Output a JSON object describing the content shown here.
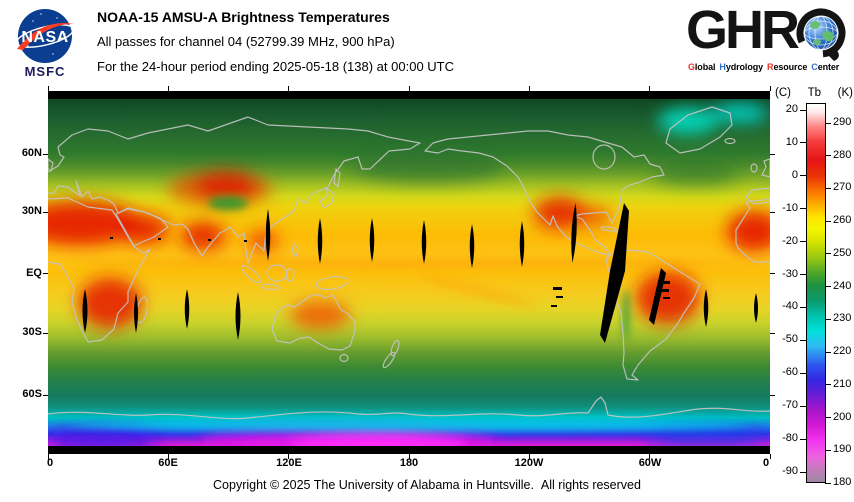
{
  "header": {
    "nasa": {
      "logo_text": "NASA",
      "center_label": "MSFC"
    },
    "title_lines": [
      "NOAA-15 AMSU-A Brightness Temperatures",
      "All passes for channel 04 (52799.39 MHz, 900 hPa)",
      "For the 24-hour period ending 2025-05-18 (138) at 00:00 UTC"
    ],
    "ghrc": {
      "wordmark": "GHR",
      "tagline": [
        {
          "first": "G",
          "rest": "lobal",
          "color": "#e8332a"
        },
        {
          "first": "H",
          "rest": "ydrology",
          "color": "#2f6fce"
        },
        {
          "first": "R",
          "rest": "esource",
          "color": "#e8332a"
        },
        {
          "first": "C",
          "rest": "enter",
          "color": "#2f6fce"
        }
      ]
    }
  },
  "map": {
    "lat_labels": [
      "60N",
      "30N",
      "EQ",
      "30S",
      "60S"
    ],
    "lon_labels": [
      "0",
      "60E",
      "120E",
      "180",
      "120W",
      "60W",
      "0"
    ]
  },
  "colorbar": {
    "unit_header": {
      "left": "(C)",
      "mid": "Tb",
      "right": "(K)"
    },
    "celsius_labels": [
      "20",
      "10",
      "0",
      "-10",
      "-20",
      "-30",
      "-40",
      "-50",
      "-60",
      "-70",
      "-80",
      "-90"
    ],
    "kelvin_labels": [
      "290",
      "280",
      "270",
      "260",
      "250",
      "240",
      "230",
      "220",
      "210",
      "200",
      "190",
      "180"
    ]
  },
  "footer": {
    "copyright": "Copyright © 2025 The University of Alabama in Huntsville.  All rights reserved"
  },
  "chart_data": {
    "type": "heatmap",
    "title": "NOAA-15 AMSU-A Brightness Temperatures",
    "subtitle": [
      "All passes for channel 04 (52799.39 MHz, 900 hPa)",
      "For the 24-hour period ending 2025-05-18 (138) at 00:00 UTC"
    ],
    "projection": "equirectangular world map, longitude 0E-360E left to right, latitude 90N-90S top to bottom",
    "x_tick_labels": [
      "0",
      "60E",
      "120E",
      "180",
      "120W",
      "60W",
      "0"
    ],
    "y_tick_labels": [
      "60N",
      "30N",
      "EQ",
      "30S",
      "60S"
    ],
    "colorbar": {
      "title": "(C) Tb (K)",
      "celsius_ticks": [
        20,
        10,
        0,
        -10,
        -20,
        -30,
        -40,
        -50,
        -60,
        -70,
        -80,
        -90
      ],
      "kelvin_ticks": [
        290,
        280,
        270,
        260,
        250,
        240,
        230,
        220,
        210,
        200,
        190,
        180
      ],
      "range_kelvin": [
        180,
        293
      ],
      "colors_top_to_bottom": [
        "#ffffff",
        "#ff8585",
        "#e61414",
        "#fb7300",
        "#ffe400",
        "#cfe000",
        "#46a52b",
        "#0b9a6d",
        "#00e0da",
        "#2d56ee",
        "#6b1cd6",
        "#d518d5",
        "#ef5fe2",
        "#9e8aa4"
      ]
    },
    "features": [
      "warm red regions (~275-290 K) over Sahara, West Africa, Arabia, India, central Asia, southeast Asia, Mexico/southern US, Brazil, southern Africa, central Australia",
      "yellow-orange tropical oceans (~255-265 K) with faint orange ITCZ band near the equator",
      "green mid/high-latitude oceans and land (~240-250 K) over Siberia, Canada, Southern Ocean",
      "cyan cold patch (~225-230 K) over Greenland and far-north Atlantic",
      "cyan-blue-violet-magenta Antarctica (~180-225 K) with bright magenta interior",
      "black lens-shaped inter-swath data gaps near 10-35N and 15-35S, plus two large slanted gap swaths over/near South America",
      "black no-data bands poleward of about 85N and 85S"
    ]
  }
}
